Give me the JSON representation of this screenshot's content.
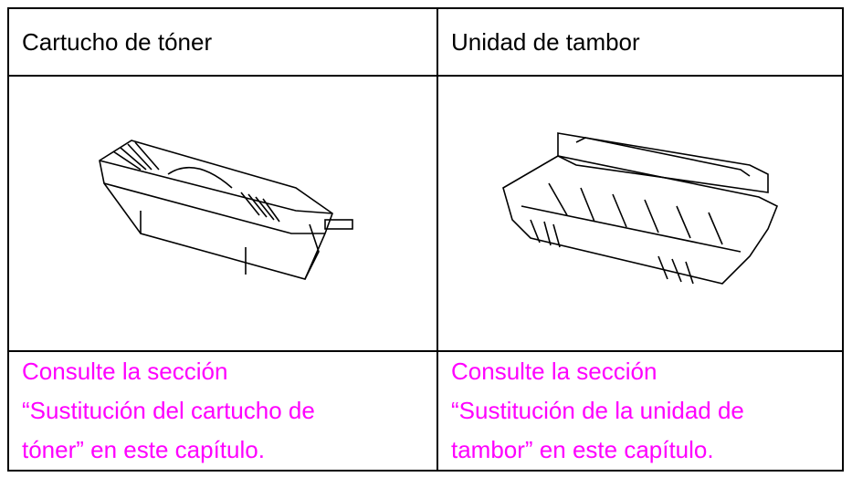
{
  "table": {
    "header": [
      "Cartucho de tóner",
      "Unidad de tambor"
    ],
    "links": [
      [
        "Consulte la sección",
        "“Sustitución del cartucho de",
        "tóner” en este capítulo."
      ],
      [
        "Consulte la sección",
        "“Sustitución de la unidad de",
        "tambor” en este capítulo."
      ]
    ]
  }
}
